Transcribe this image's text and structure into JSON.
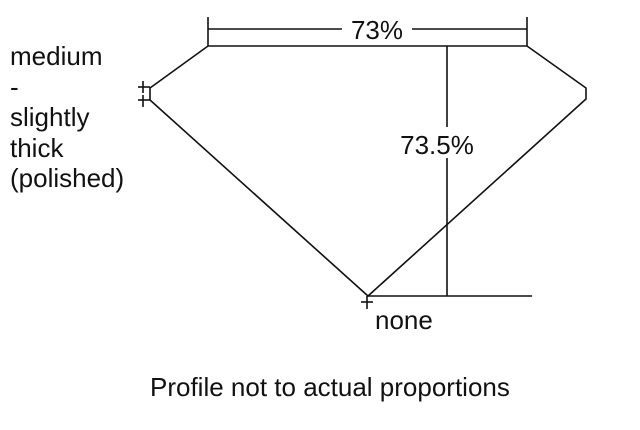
{
  "girdle_label_lines": [
    "medium",
    "-",
    "slightly",
    "thick",
    "(polished)"
  ],
  "table_percent": "73%",
  "depth_percent": "73.5%",
  "culet_label": "none",
  "caption": "Profile not to actual proportions",
  "colors": {
    "line": "#111111",
    "background": "#ffffff"
  }
}
